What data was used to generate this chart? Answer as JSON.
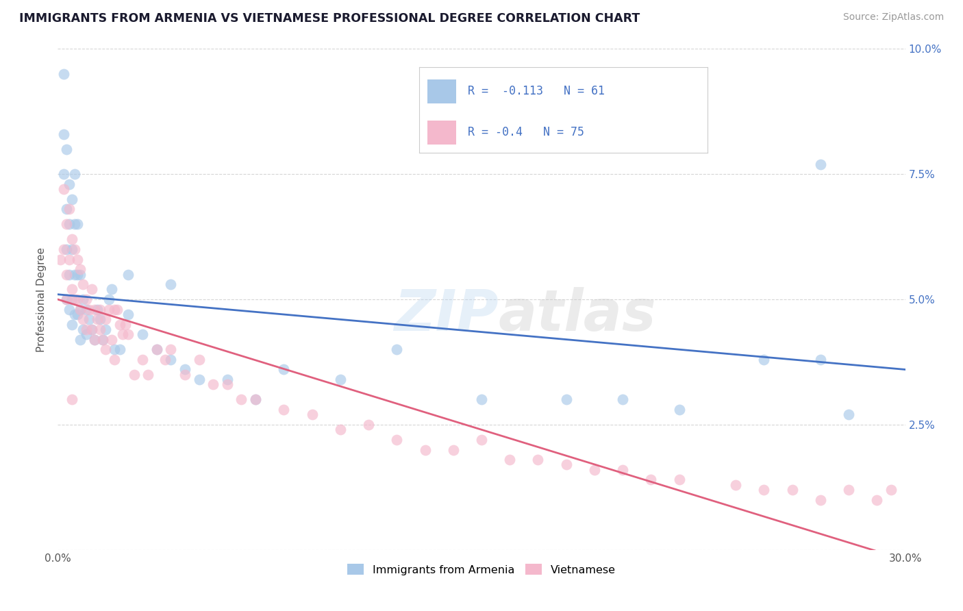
{
  "title": "IMMIGRANTS FROM ARMENIA VS VIETNAMESE PROFESSIONAL DEGREE CORRELATION CHART",
  "source": "Source: ZipAtlas.com",
  "ylabel": "Professional Degree",
  "xlim": [
    0.0,
    0.3
  ],
  "ylim": [
    0.0,
    0.1
  ],
  "xtick_positions": [
    0.0,
    0.05,
    0.1,
    0.15,
    0.2,
    0.25,
    0.3
  ],
  "xtick_labels": [
    "0.0%",
    "",
    "",
    "",
    "",
    "",
    "30.0%"
  ],
  "ytick_positions": [
    0.0,
    0.025,
    0.05,
    0.075,
    0.1
  ],
  "ytick_labels": [
    "",
    "2.5%",
    "5.0%",
    "7.5%",
    "10.0%"
  ],
  "series1_label": "Immigrants from Armenia",
  "series1_color": "#a8c8e8",
  "series1_R": -0.113,
  "series1_N": 61,
  "series1_line_color": "#4472c4",
  "series2_label": "Vietnamese",
  "series2_color": "#f4b8cc",
  "series2_R": -0.4,
  "series2_N": 75,
  "series2_line_color": "#e0607e",
  "background_color": "#ffffff",
  "grid_color": "#cccccc",
  "trend1_x0": 0.0,
  "trend1_y0": 0.051,
  "trend1_x1": 0.3,
  "trend1_y1": 0.036,
  "trend2_x0": 0.0,
  "trend2_y0": 0.05,
  "trend2_x1": 0.3,
  "trend2_y1": -0.002,
  "series1_x": [
    0.002,
    0.002,
    0.002,
    0.003,
    0.003,
    0.003,
    0.003,
    0.004,
    0.004,
    0.004,
    0.004,
    0.005,
    0.005,
    0.005,
    0.005,
    0.006,
    0.006,
    0.006,
    0.006,
    0.007,
    0.007,
    0.007,
    0.008,
    0.008,
    0.008,
    0.009,
    0.009,
    0.01,
    0.01,
    0.011,
    0.012,
    0.013,
    0.014,
    0.015,
    0.016,
    0.017,
    0.018,
    0.019,
    0.02,
    0.022,
    0.025,
    0.03,
    0.035,
    0.04,
    0.045,
    0.05,
    0.06,
    0.07,
    0.08,
    0.1,
    0.12,
    0.15,
    0.18,
    0.2,
    0.22,
    0.25,
    0.27,
    0.28,
    0.025,
    0.04,
    0.27
  ],
  "series1_y": [
    0.095,
    0.083,
    0.075,
    0.08,
    0.068,
    0.06,
    0.05,
    0.073,
    0.065,
    0.055,
    0.048,
    0.07,
    0.06,
    0.05,
    0.045,
    0.075,
    0.065,
    0.055,
    0.047,
    0.065,
    0.055,
    0.047,
    0.055,
    0.048,
    0.042,
    0.05,
    0.044,
    0.048,
    0.043,
    0.046,
    0.044,
    0.042,
    0.048,
    0.046,
    0.042,
    0.044,
    0.05,
    0.052,
    0.04,
    0.04,
    0.047,
    0.043,
    0.04,
    0.038,
    0.036,
    0.034,
    0.034,
    0.03,
    0.036,
    0.034,
    0.04,
    0.03,
    0.03,
    0.03,
    0.028,
    0.038,
    0.038,
    0.027,
    0.055,
    0.053,
    0.077
  ],
  "series2_x": [
    0.001,
    0.002,
    0.002,
    0.003,
    0.003,
    0.004,
    0.004,
    0.005,
    0.005,
    0.006,
    0.006,
    0.007,
    0.007,
    0.008,
    0.008,
    0.009,
    0.009,
    0.01,
    0.01,
    0.011,
    0.012,
    0.012,
    0.013,
    0.013,
    0.014,
    0.015,
    0.015,
    0.016,
    0.017,
    0.017,
    0.018,
    0.019,
    0.02,
    0.02,
    0.021,
    0.022,
    0.023,
    0.024,
    0.025,
    0.027,
    0.03,
    0.032,
    0.035,
    0.038,
    0.04,
    0.045,
    0.05,
    0.055,
    0.06,
    0.065,
    0.07,
    0.08,
    0.09,
    0.1,
    0.11,
    0.12,
    0.13,
    0.14,
    0.15,
    0.16,
    0.17,
    0.18,
    0.19,
    0.2,
    0.21,
    0.22,
    0.24,
    0.25,
    0.26,
    0.27,
    0.28,
    0.29,
    0.295,
    0.003,
    0.005
  ],
  "series2_y": [
    0.058,
    0.072,
    0.06,
    0.065,
    0.055,
    0.068,
    0.058,
    0.062,
    0.052,
    0.06,
    0.05,
    0.058,
    0.05,
    0.056,
    0.048,
    0.053,
    0.046,
    0.05,
    0.044,
    0.048,
    0.052,
    0.044,
    0.048,
    0.042,
    0.046,
    0.048,
    0.044,
    0.042,
    0.046,
    0.04,
    0.048,
    0.042,
    0.048,
    0.038,
    0.048,
    0.045,
    0.043,
    0.045,
    0.043,
    0.035,
    0.038,
    0.035,
    0.04,
    0.038,
    0.04,
    0.035,
    0.038,
    0.033,
    0.033,
    0.03,
    0.03,
    0.028,
    0.027,
    0.024,
    0.025,
    0.022,
    0.02,
    0.02,
    0.022,
    0.018,
    0.018,
    0.017,
    0.016,
    0.016,
    0.014,
    0.014,
    0.013,
    0.012,
    0.012,
    0.01,
    0.012,
    0.01,
    0.012,
    0.05,
    0.03
  ]
}
